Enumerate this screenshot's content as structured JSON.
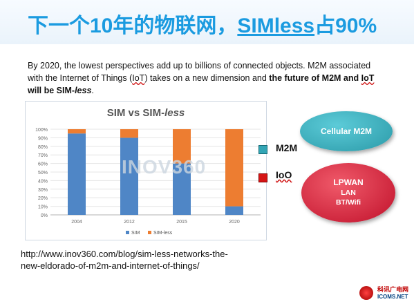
{
  "title": {
    "part1": "下一个10年的物联网，",
    "part2": "SIMless",
    "part3": "占90%"
  },
  "intro": {
    "s1": "By 2020,  the lowest perspectives add up to billions of connected objects. M2M associated with the Internet of Things (",
    "iot1": "IoT",
    "s2": ") takes on a new dimension and ",
    "bold1": "the future of M2M and ",
    "iot2": "IoT",
    "bold2": " will be SIM-",
    "bold3": "less",
    "end": "."
  },
  "chart_data": {
    "type": "bar",
    "stacked": true,
    "title_main": "SIM vs SIM-",
    "title_italic": "less",
    "categories": [
      "2004",
      "2012",
      "2015",
      "2020"
    ],
    "series": [
      {
        "name": "SIM",
        "color": "#4f86c6",
        "values": [
          95,
          90,
          60,
          10
        ]
      },
      {
        "name": "SIM-less",
        "color": "#ed7d31",
        "values": [
          5,
          10,
          40,
          90
        ]
      }
    ],
    "yticks": [
      "0%",
      "10%",
      "20%",
      "30%",
      "40%",
      "50%",
      "60%",
      "70%",
      "80%",
      "90%",
      "100%"
    ],
    "ylim": [
      0,
      100
    ],
    "grid": true,
    "legend_position": "bottom"
  },
  "watermark": "INOV360",
  "legend_right": {
    "m2m": "M2M",
    "ioo": "IoO"
  },
  "ellipses": {
    "cellular": "Cellular M2M",
    "lpwan": "LPWAN",
    "lan": "LAN",
    "bt": "BT/Wifi"
  },
  "url": "http://www.inov360.com/blog/sim-less-networks-the-new-eldorado-of-m2m-and-internet-of-things/",
  "logo": {
    "cn": "科讯广电网",
    "en": "ICOMS.NET"
  }
}
